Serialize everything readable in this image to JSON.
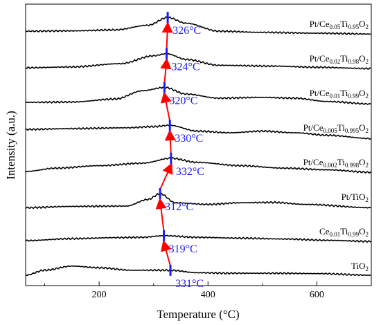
{
  "chart_data": {
    "type": "line",
    "title": "",
    "xlabel": "Temperature (°C)",
    "ylabel": "Intensity (a.u.)",
    "xlim": [
      65,
      700
    ],
    "xticks": [
      200,
      400,
      600
    ],
    "y_tick_labels": "none",
    "grid": false,
    "series": [
      {
        "name": "Pt/Ce0.05Ti0.95O2",
        "label_parts": [
          "Pt/Ce",
          "0.05",
          "Ti",
          "0.95",
          "O",
          "2"
        ],
        "peak_label": "326°C",
        "peak_x": 326,
        "offset": 7,
        "shape": [
          [
            65,
            0.12
          ],
          [
            150,
            0.14
          ],
          [
            230,
            0.2
          ],
          [
            290,
            0.48
          ],
          [
            326,
            0.95
          ],
          [
            360,
            0.6
          ],
          [
            420,
            0.12
          ],
          [
            500,
            0.05
          ],
          [
            600,
            0.0
          ],
          [
            700,
            -0.05
          ]
        ]
      },
      {
        "name": "Pt/Ce0.02Ti0.98O2",
        "label_parts": [
          "Pt/Ce",
          "0.02",
          "Ti",
          "0.98",
          "O",
          "2"
        ],
        "peak_label": "324°C",
        "peak_x": 324,
        "offset": 6,
        "shape": [
          [
            65,
            0.0
          ],
          [
            150,
            0.05
          ],
          [
            240,
            0.25
          ],
          [
            300,
            0.72
          ],
          [
            324,
            0.85
          ],
          [
            360,
            0.5
          ],
          [
            420,
            0.15
          ],
          [
            520,
            0.1
          ],
          [
            600,
            0.03
          ],
          [
            700,
            -0.05
          ]
        ]
      },
      {
        "name": "Pt/Ce0.01Ti0.99O2",
        "label_parts": [
          "Pt/Ce",
          "0.01",
          "Ti",
          "0.99",
          "O",
          "2"
        ],
        "peak_label": "320°C",
        "peak_x": 320,
        "offset": 5,
        "shape": [
          [
            65,
            0.0
          ],
          [
            150,
            0.02
          ],
          [
            230,
            0.2
          ],
          [
            280,
            0.7
          ],
          [
            320,
            0.9
          ],
          [
            360,
            0.5
          ],
          [
            420,
            0.25
          ],
          [
            500,
            0.3
          ],
          [
            560,
            0.25
          ],
          [
            620,
            0.05
          ],
          [
            700,
            -0.1
          ]
        ]
      },
      {
        "name": "Pt/Ce0.005Ti0.995O2",
        "label_parts": [
          "Pt/Ce",
          "0.005",
          "Ti",
          "0.995",
          "O",
          "2"
        ],
        "peak_label": "330°C",
        "peak_x": 330,
        "offset": 4,
        "shape": [
          [
            65,
            0.45
          ],
          [
            150,
            0.5
          ],
          [
            250,
            0.55
          ],
          [
            300,
            0.62
          ],
          [
            330,
            0.7
          ],
          [
            380,
            0.35
          ],
          [
            440,
            0.25
          ],
          [
            500,
            0.35
          ],
          [
            560,
            0.25
          ],
          [
            620,
            0.1
          ],
          [
            700,
            -0.1
          ]
        ]
      },
      {
        "name": "Pt/Ce0.002Ti0.998O2",
        "label_parts": [
          "Pt/Ce",
          "0.002",
          "Ti",
          "0.998",
          "O",
          "2"
        ],
        "peak_label": "332°C",
        "peak_x": 332,
        "offset": 3,
        "shape": [
          [
            65,
            0.0
          ],
          [
            120,
            0.2
          ],
          [
            200,
            0.35
          ],
          [
            280,
            0.5
          ],
          [
            332,
            0.8
          ],
          [
            380,
            0.55
          ],
          [
            460,
            0.35
          ],
          [
            540,
            0.2
          ],
          [
            620,
            0.1
          ],
          [
            700,
            -0.05
          ]
        ]
      },
      {
        "name": "Pt/TiO2",
        "label_parts": [
          "Pt/TiO",
          "2",
          "",
          "",
          "",
          ""
        ],
        "peak_label": "312°C",
        "peak_x": 312,
        "offset": 2,
        "shape": [
          [
            65,
            -0.1
          ],
          [
            150,
            -0.02
          ],
          [
            250,
            0.0
          ],
          [
            290,
            0.4
          ],
          [
            312,
            0.75
          ],
          [
            340,
            0.2
          ],
          [
            400,
            0.1
          ],
          [
            460,
            0.2
          ],
          [
            520,
            0.22
          ],
          [
            580,
            0.1
          ],
          [
            700,
            -0.1
          ]
        ]
      },
      {
        "name": "Ce0.01Ti0.99O2",
        "label_parts": [
          "Ce",
          "0.01",
          "Ti",
          "0.99",
          "O",
          "2"
        ],
        "peak_label": "319°C",
        "peak_x": 319,
        "offset": 1,
        "shape": [
          [
            65,
            0.0
          ],
          [
            150,
            0.12
          ],
          [
            230,
            0.18
          ],
          [
            280,
            0.2
          ],
          [
            319,
            0.3
          ],
          [
            380,
            0.2
          ],
          [
            460,
            0.15
          ],
          [
            540,
            0.1
          ],
          [
            620,
            0.02
          ],
          [
            700,
            -0.05
          ]
        ]
      },
      {
        "name": "TiO2",
        "label_parts": [
          "TiO",
          "2",
          "",
          "",
          "",
          ""
        ],
        "peak_label": "331°C",
        "peak_x": 331,
        "offset": 0,
        "shape": [
          [
            65,
            0.0
          ],
          [
            100,
            0.3
          ],
          [
            150,
            0.55
          ],
          [
            200,
            0.45
          ],
          [
            260,
            0.3
          ],
          [
            331,
            0.3
          ],
          [
            380,
            0.15
          ],
          [
            440,
            0.12
          ],
          [
            520,
            0.12
          ],
          [
            600,
            0.1
          ],
          [
            700,
            0.0
          ]
        ]
      }
    ],
    "colors": {
      "curve": "#000000",
      "arrow": "#ff0000",
      "marker": "#1a1aff",
      "label": "#1a1aff"
    }
  }
}
